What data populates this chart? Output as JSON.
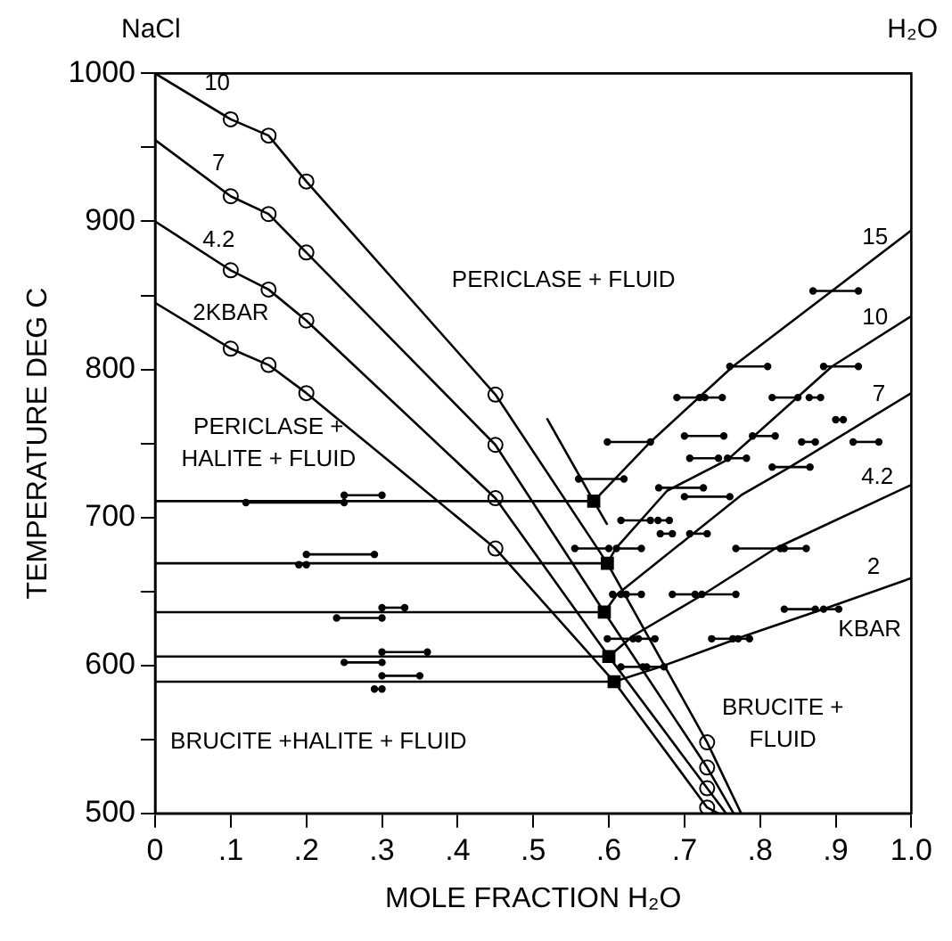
{
  "chart_data": {
    "type": "line",
    "xlabel": "MOLE FRACTION H₂O",
    "ylabel": "TEMPERATURE DEG C",
    "xlim": [
      0,
      1
    ],
    "ylim": [
      500,
      1000
    ],
    "xticks": [
      {
        "value": 0,
        "label": "0"
      },
      {
        "value": 0.1,
        "label": ".1"
      },
      {
        "value": 0.2,
        "label": ".2"
      },
      {
        "value": 0.3,
        "label": ".3"
      },
      {
        "value": 0.4,
        "label": ".4"
      },
      {
        "value": 0.5,
        "label": ".5"
      },
      {
        "value": 0.6,
        "label": ".6"
      },
      {
        "value": 0.7,
        "label": ".7"
      },
      {
        "value": 0.8,
        "label": ".8"
      },
      {
        "value": 0.9,
        "label": ".9"
      },
      {
        "value": 1,
        "label": "1.0"
      }
    ],
    "yticks": [
      500,
      {
        "value": 550,
        "label": null
      },
      600,
      {
        "value": 650,
        "label": null
      },
      700,
      {
        "value": 750,
        "label": null
      },
      800,
      {
        "value": 850,
        "label": null
      },
      900,
      {
        "value": 950,
        "label": null
      },
      1000
    ],
    "grid": false,
    "legend": false,
    "marker": "none",
    "line_style": "solid",
    "series": [
      {
        "color": "#000000",
        "x": [
          0.518,
          0.58,
          0.598
        ],
        "values": [
          767,
          711,
          695
        ]
      },
      {
        "color": "#000000",
        "x": [
          0,
          0.1,
          0.15,
          0.2,
          0.45,
          0.598,
          0.73,
          0.775
        ],
        "values": [
          1000,
          969,
          958,
          927,
          783,
          669,
          548,
          500
        ]
      },
      {
        "color": "#000000",
        "x": [
          0,
          0.1,
          0.15,
          0.2,
          0.45,
          0.594,
          0.73,
          0.765
        ],
        "values": [
          955,
          917,
          905,
          879,
          749,
          636,
          531,
          500
        ]
      },
      {
        "color": "#000000",
        "x": [
          0,
          0.1,
          0.15,
          0.2,
          0.45,
          0.6,
          0.73,
          0.755
        ],
        "values": [
          900,
          867,
          854,
          833,
          713,
          606,
          517,
          500
        ]
      },
      {
        "color": "#000000",
        "x": [
          0,
          0.1,
          0.15,
          0.2,
          0.45,
          0.607,
          0.73,
          0.745
        ],
        "values": [
          845,
          814,
          803,
          784,
          679,
          589,
          504,
          500
        ]
      },
      {
        "color": "#000000",
        "x": [
          0.58,
          0.655,
          0.764,
          0.895,
          1
        ],
        "values": [
          711,
          751,
          802,
          853,
          894
        ]
      },
      {
        "color": "#000000",
        "x": [
          0.598,
          0.609,
          0.677,
          0.757,
          0.895,
          1
        ],
        "values": [
          669,
          679,
          718,
          739,
          802,
          836
        ]
      },
      {
        "color": "#000000",
        "x": [
          0.594,
          0.611,
          0.775,
          0.836,
          1
        ],
        "values": [
          636,
          648,
          715,
          733,
          784
        ]
      },
      {
        "color": "#000000",
        "x": [
          0.6,
          0.632,
          0.725,
          0.82,
          1
        ],
        "values": [
          606,
          620,
          648,
          679,
          722
        ]
      },
      {
        "color": "#000000",
        "x": [
          0.607,
          0.668,
          0.78,
          0.889,
          1
        ],
        "values": [
          589,
          599,
          620,
          639,
          659
        ]
      },
      {
        "color": "#000000",
        "x": [
          0,
          0.58
        ],
        "values": [
          711,
          711
        ]
      },
      {
        "color": "#000000",
        "x": [
          0,
          0.598
        ],
        "values": [
          669,
          669
        ]
      },
      {
        "color": "#000000",
        "x": [
          0,
          0.594
        ],
        "values": [
          636,
          636
        ]
      },
      {
        "color": "#000000",
        "x": [
          0,
          0.6
        ],
        "values": [
          606,
          606
        ]
      },
      {
        "color": "#000000",
        "x": [
          0,
          0.607
        ],
        "values": [
          589,
          589
        ]
      },
      {
        "type": "scatter",
        "color": "#000000",
        "marker": "circle",
        "x": [
          0.1,
          0.15,
          0.2,
          0.45,
          0.73,
          0.1,
          0.15,
          0.2,
          0.45,
          0.73,
          0.1,
          0.15,
          0.2,
          0.45,
          0.73,
          0.1,
          0.15,
          0.2,
          0.45,
          0.73
        ],
        "values": [
          969,
          958,
          927,
          783,
          548,
          917,
          905,
          879,
          749,
          531,
          867,
          854,
          833,
          713,
          517,
          814,
          803,
          784,
          679,
          504
        ]
      },
      {
        "type": "scatter",
        "color": "#000000",
        "marker": "square",
        "x": [
          0.58,
          0.598,
          0.594,
          0.6,
          0.607
        ],
        "values": [
          711,
          669,
          636,
          606,
          589
        ]
      },
      {
        "color": "#000000",
        "marker": "circle",
        "x": [
          0.12,
          0.25
        ],
        "values": [
          710,
          710
        ]
      },
      {
        "color": "#000000",
        "marker": "circle",
        "x": [
          0.25,
          0.3
        ],
        "values": [
          715,
          715
        ]
      },
      {
        "color": "#000000",
        "marker": "circle",
        "x": [
          0.2,
          0.29
        ],
        "values": [
          675,
          675
        ]
      },
      {
        "color": "#000000",
        "marker": "circle",
        "x": [
          0.19,
          0.2
        ],
        "values": [
          668,
          668
        ]
      },
      {
        "color": "#000000",
        "marker": "circle",
        "x": [
          0.3,
          0.33
        ],
        "values": [
          639,
          639
        ]
      },
      {
        "color": "#000000",
        "marker": "circle",
        "x": [
          0.24,
          0.3
        ],
        "values": [
          632,
          632
        ]
      },
      {
        "color": "#000000",
        "marker": "circle",
        "x": [
          0.3,
          0.36
        ],
        "values": [
          609,
          609
        ]
      },
      {
        "color": "#000000",
        "marker": "circle",
        "x": [
          0.25,
          0.3
        ],
        "values": [
          602,
          602
        ]
      },
      {
        "color": "#000000",
        "marker": "circle",
        "x": [
          0.3,
          0.35
        ],
        "values": [
          593,
          593
        ]
      },
      {
        "color": "#000000",
        "marker": "circle",
        "x": [
          0.29,
          0.3
        ],
        "values": [
          584,
          584
        ]
      },
      {
        "color": "#000000",
        "marker": "circle",
        "x": [
          0.87,
          0.93
        ],
        "values": [
          853,
          853
        ]
      },
      {
        "color": "#000000",
        "marker": "circle",
        "x": [
          0.76,
          0.81
        ],
        "values": [
          802,
          802
        ]
      },
      {
        "color": "#000000",
        "marker": "circle",
        "x": [
          0.884,
          0.93
        ],
        "values": [
          802,
          802
        ]
      },
      {
        "color": "#000000",
        "marker": "circle",
        "x": [
          0.69,
          0.72
        ],
        "values": [
          781,
          781
        ]
      },
      {
        "color": "#000000",
        "marker": "circle",
        "x": [
          0.727,
          0.75
        ],
        "values": [
          781,
          781
        ]
      },
      {
        "color": "#000000",
        "marker": "circle",
        "x": [
          0.816,
          0.85
        ],
        "values": [
          781,
          781
        ]
      },
      {
        "color": "#000000",
        "marker": "circle",
        "x": [
          0.865,
          0.88
        ],
        "values": [
          781,
          781
        ]
      },
      {
        "color": "#000000",
        "marker": "circle",
        "x": [
          0.598,
          0.655
        ],
        "values": [
          751,
          751
        ]
      },
      {
        "color": "#000000",
        "marker": "circle",
        "x": [
          0.7,
          0.752
        ],
        "values": [
          755,
          755
        ]
      },
      {
        "color": "#000000",
        "marker": "circle",
        "x": [
          0.79,
          0.82
        ],
        "values": [
          755,
          755
        ]
      },
      {
        "color": "#000000",
        "marker": "circle",
        "x": [
          0.855,
          0.873
        ],
        "values": [
          751,
          751
        ]
      },
      {
        "color": "#000000",
        "marker": "circle",
        "x": [
          0.9,
          0.91
        ],
        "values": [
          766,
          766
        ]
      },
      {
        "color": "#000000",
        "marker": "circle",
        "x": [
          0.923,
          0.957
        ],
        "values": [
          751,
          751
        ]
      },
      {
        "color": "#000000",
        "marker": "circle",
        "x": [
          0.707,
          0.745
        ],
        "values": [
          740,
          740
        ]
      },
      {
        "color": "#000000",
        "marker": "circle",
        "x": [
          0.757,
          0.782
        ],
        "values": [
          740,
          740
        ]
      },
      {
        "color": "#000000",
        "marker": "circle",
        "x": [
          0.816,
          0.866
        ],
        "values": [
          734,
          734
        ]
      },
      {
        "color": "#000000",
        "marker": "circle",
        "x": [
          0.56,
          0.62
        ],
        "values": [
          726,
          726
        ]
      },
      {
        "color": "#000000",
        "marker": "circle",
        "x": [
          0.666,
          0.725
        ],
        "values": [
          720,
          720
        ]
      },
      {
        "color": "#000000",
        "marker": "circle",
        "x": [
          0.7,
          0.76
        ],
        "values": [
          714,
          714
        ]
      },
      {
        "color": "#000000",
        "marker": "circle",
        "x": [
          0.616,
          0.655
        ],
        "values": [
          698,
          698
        ]
      },
      {
        "color": "#000000",
        "marker": "circle",
        "x": [
          0.665,
          0.68
        ],
        "values": [
          698,
          698
        ]
      },
      {
        "color": "#000000",
        "marker": "circle",
        "x": [
          0.668,
          0.684
        ],
        "values": [
          689,
          689
        ]
      },
      {
        "color": "#000000",
        "marker": "circle",
        "x": [
          0.707,
          0.73
        ],
        "values": [
          689,
          689
        ]
      },
      {
        "color": "#000000",
        "marker": "circle",
        "x": [
          0.555,
          0.6
        ],
        "values": [
          679,
          679
        ]
      },
      {
        "color": "#000000",
        "marker": "circle",
        "x": [
          0.61,
          0.643
        ],
        "values": [
          679,
          679
        ]
      },
      {
        "color": "#000000",
        "marker": "circle",
        "x": [
          0.768,
          0.827
        ],
        "values": [
          679,
          679
        ]
      },
      {
        "color": "#000000",
        "marker": "circle",
        "x": [
          0.832,
          0.861
        ],
        "values": [
          679,
          679
        ]
      },
      {
        "color": "#000000",
        "marker": "circle",
        "x": [
          0.605,
          0.616
        ],
        "values": [
          648,
          648
        ]
      },
      {
        "color": "#000000",
        "marker": "circle",
        "x": [
          0.623,
          0.643
        ],
        "values": [
          648,
          648
        ]
      },
      {
        "color": "#000000",
        "marker": "circle",
        "x": [
          0.684,
          0.714
        ],
        "values": [
          648,
          648
        ]
      },
      {
        "color": "#000000",
        "marker": "circle",
        "x": [
          0.723,
          0.768
        ],
        "values": [
          648,
          648
        ]
      },
      {
        "color": "#000000",
        "marker": "circle",
        "x": [
          0.832,
          0.873
        ],
        "values": [
          638,
          638
        ]
      },
      {
        "color": "#000000",
        "marker": "circle",
        "x": [
          0.884,
          0.904
        ],
        "values": [
          638,
          638
        ]
      },
      {
        "color": "#000000",
        "marker": "circle",
        "x": [
          0.598,
          0.632
        ],
        "values": [
          618,
          618
        ]
      },
      {
        "color": "#000000",
        "marker": "circle",
        "x": [
          0.639,
          0.661
        ],
        "values": [
          618,
          618
        ]
      },
      {
        "color": "#000000",
        "marker": "circle",
        "x": [
          0.736,
          0.764
        ],
        "values": [
          618,
          618
        ]
      },
      {
        "color": "#000000",
        "marker": "circle",
        "x": [
          0.771,
          0.786
        ],
        "values": [
          618,
          618
        ]
      },
      {
        "color": "#000000",
        "marker": "circle",
        "x": [
          0.616,
          0.645
        ],
        "values": [
          599,
          599
        ]
      },
      {
        "color": "#000000",
        "marker": "circle",
        "x": [
          0.65,
          0.673
        ],
        "values": [
          599,
          599
        ]
      }
    ],
    "annotations": [
      "NaCl",
      "H₂O",
      "10",
      "7",
      "4.2",
      "2KBAR",
      "PERICLASE + FLUID",
      "PERICLASE +\nHALITE + FLUID",
      "BRUCITE +HALITE + FLUID",
      "BRUCITE +\nFLUID",
      "15",
      "10",
      "7",
      "4.2",
      "2",
      "KBAR"
    ]
  }
}
